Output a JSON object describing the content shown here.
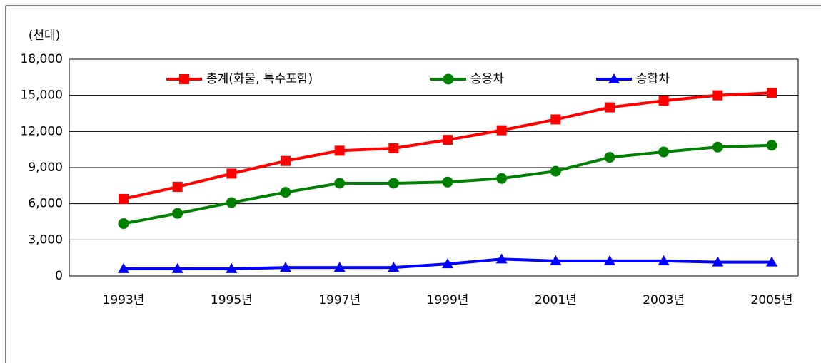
{
  "chart_data": {
    "type": "line",
    "y_label": "(천대)",
    "categories": [
      "1993년",
      null,
      "1995년",
      null,
      "1997년",
      null,
      "1999년",
      null,
      "2001년",
      null,
      "2003년",
      null,
      "2005년"
    ],
    "series": [
      {
        "name": "총계(화물, 특수포함)",
        "color": "#ff0000",
        "marker": "square",
        "values": [
          6400,
          7400,
          8500,
          9550,
          10400,
          10600,
          11300,
          12100,
          13000,
          14000,
          14550,
          15000,
          15200
        ]
      },
      {
        "name": "승용차",
        "color": "#008000",
        "marker": "circle",
        "values": [
          4350,
          5200,
          6100,
          6950,
          7700,
          7700,
          7800,
          8100,
          8700,
          9850,
          10300,
          10700,
          10850
        ]
      },
      {
        "name": "승합차",
        "color": "#0000ff",
        "marker": "triangle",
        "values": [
          600,
          600,
          600,
          700,
          700,
          700,
          1000,
          1400,
          1250,
          1250,
          1250,
          1150,
          1150
        ]
      }
    ],
    "ylim": [
      0,
      18000
    ],
    "yticks": [
      0,
      {
        "value": 3000,
        "label": "3,000"
      },
      {
        "value": 6000,
        "label": "6,000"
      },
      {
        "value": 9000,
        "label": "9,000"
      },
      {
        "value": 12000,
        "label": "12,000"
      },
      {
        "value": 15000,
        "label": "15,000"
      },
      {
        "value": 18000,
        "label": "18,000"
      }
    ],
    "grid": true,
    "legend": "top"
  }
}
